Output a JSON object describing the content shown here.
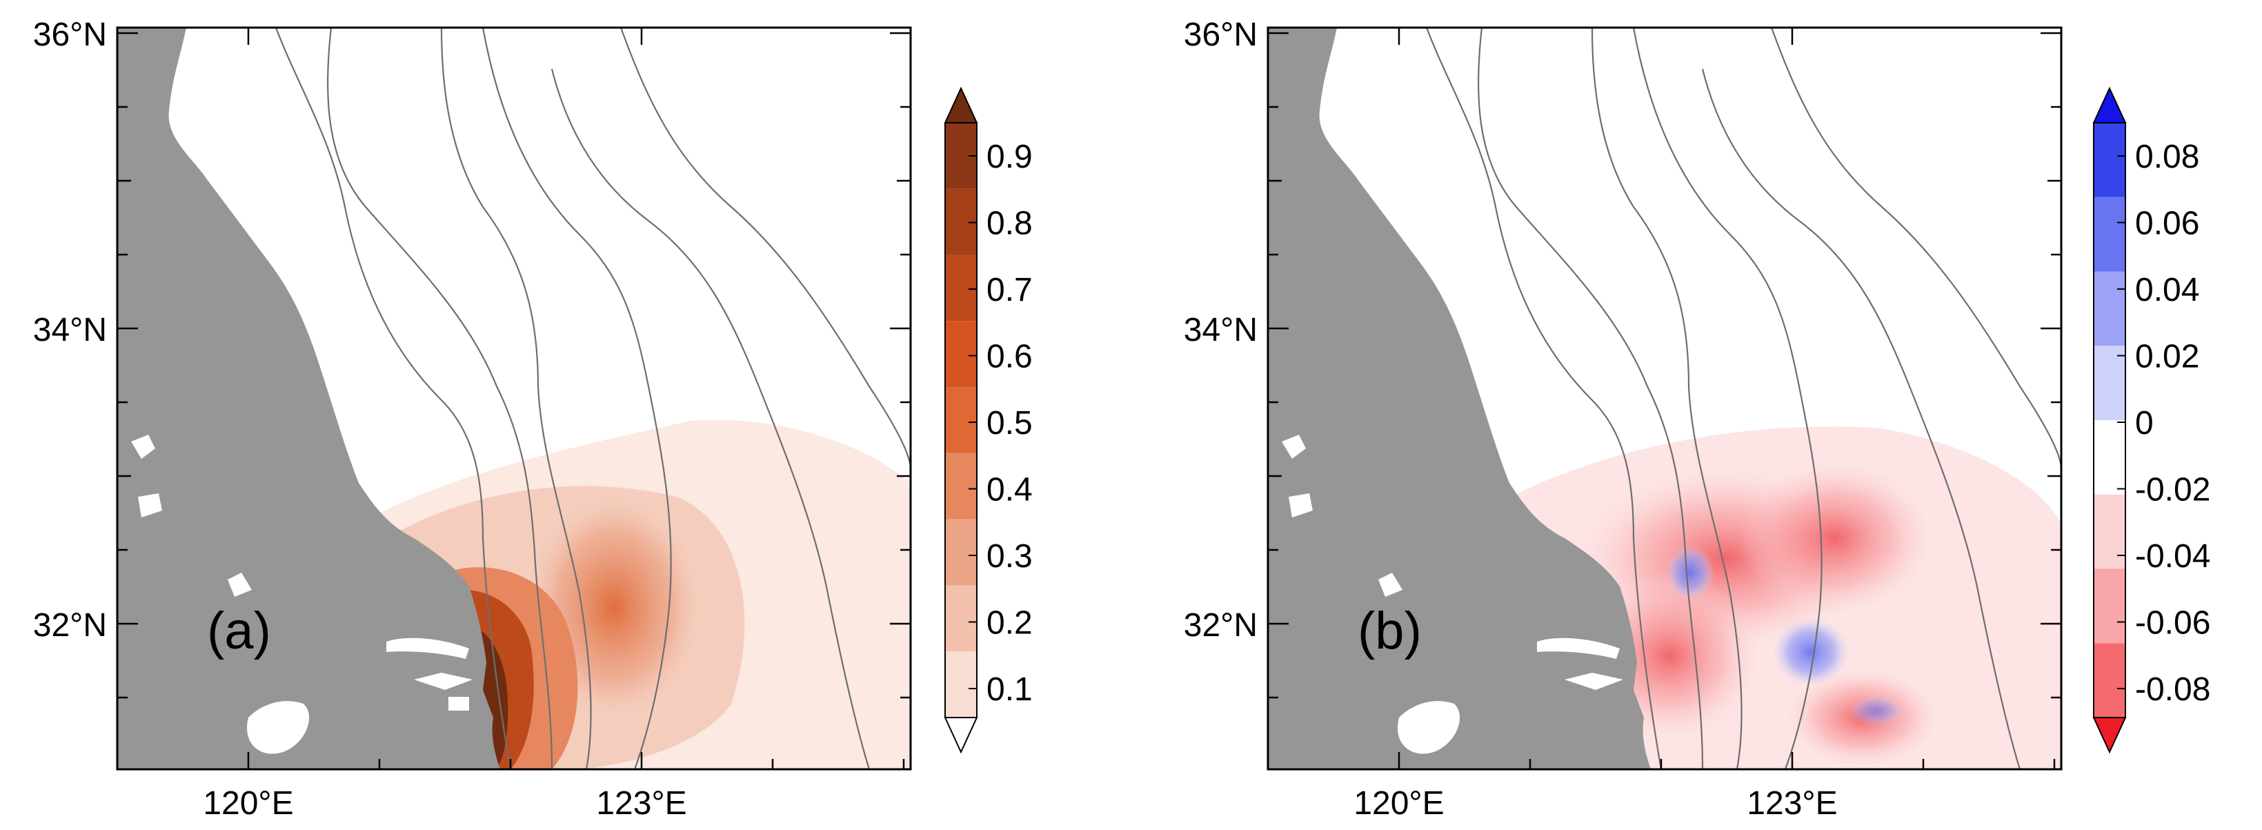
{
  "panels": [
    {
      "label": "(a)",
      "lat_ticks": [
        "36°N",
        "34°N",
        "32°N"
      ],
      "lon_ticks": [
        "120°E",
        "123°E"
      ],
      "colorbar": {
        "ticks": [
          "0.9",
          "0.8",
          "0.7",
          "0.6",
          "0.5",
          "0.4",
          "0.3",
          "0.2",
          "0.1"
        ],
        "colors": [
          "#ffffff",
          "#f8ddd3",
          "#f2c0ac",
          "#eca487",
          "#e6875f",
          "#df6935",
          "#d5541f",
          "#bd4a1b",
          "#a43f18",
          "#8c3716",
          "#6f2c10"
        ]
      }
    },
    {
      "label": "(b)",
      "lat_ticks": [
        "36°N",
        "34°N",
        "32°N"
      ],
      "lon_ticks": [
        "120°E",
        "123°E"
      ],
      "colorbar": {
        "ticks": [
          "0.08",
          "0.06",
          "0.04",
          "0.02",
          "0",
          "-0.02",
          "-0.04",
          "-0.06",
          "-0.08"
        ],
        "colors": [
          "#ee1c24",
          "#f46a6f",
          "#f9a6a8",
          "#fcd3d4",
          "#ffffff",
          "#cfd2fb",
          "#9ca3f6",
          "#6874f0",
          "#3446ea",
          "#1414e6"
        ]
      }
    }
  ],
  "colors": {
    "land": "#969696",
    "contour": "#6e6e6e",
    "frame": "#000000"
  }
}
